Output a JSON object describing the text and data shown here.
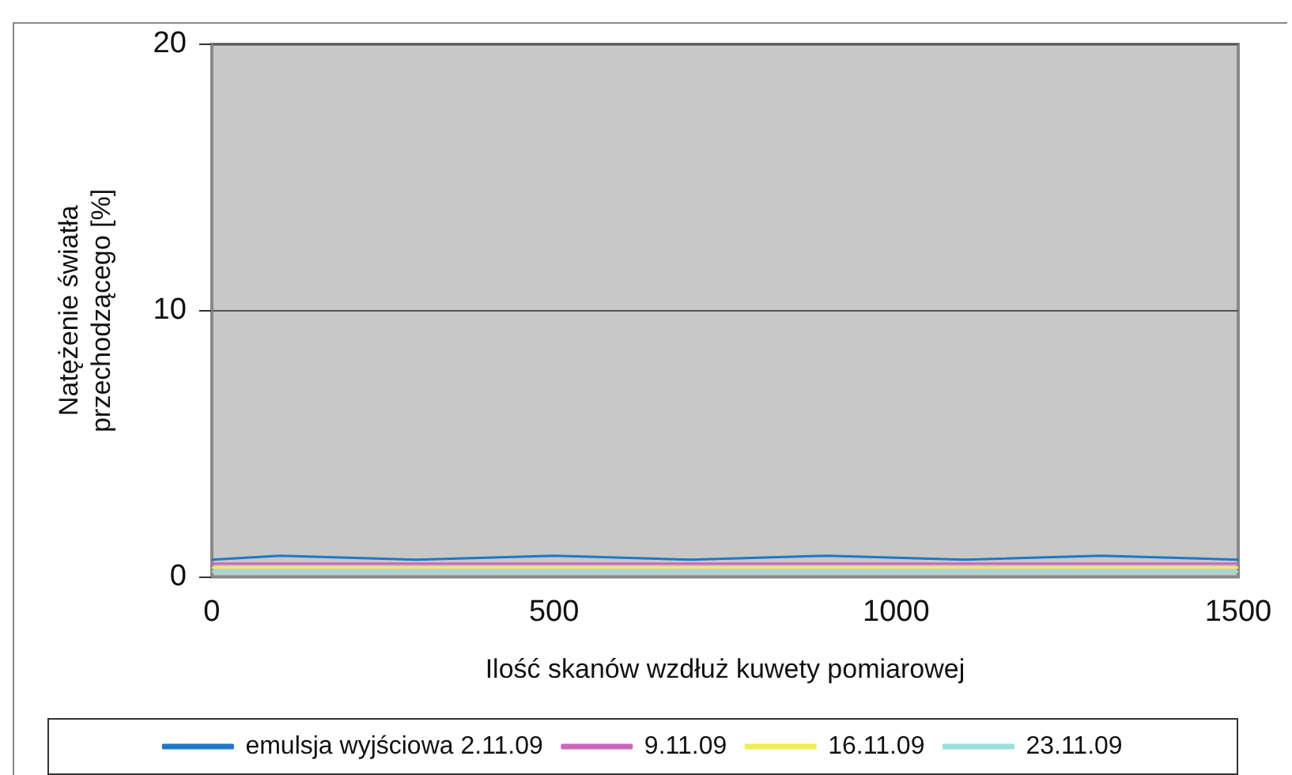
{
  "chart_data": {
    "type": "line",
    "xlabel": "Ilość skanów wzdłuż kuwety pomiarowej",
    "ylabel": "Natężenie światła przechodzącego [%]",
    "xlim": [
      0,
      1500
    ],
    "xticks": [
      0,
      500,
      1000,
      1500
    ],
    "ylim": [
      0,
      20
    ],
    "yticks": [
      0,
      10,
      20
    ],
    "grid": "y",
    "legend": "bottom",
    "marker": "none",
    "line_style": "solid",
    "series": [
      {
        "name": "emulsja wyjściowa 2.11.09",
        "color": "#1f78c8",
        "x": [
          0,
          100,
          300,
          500,
          700,
          900,
          1100,
          1300,
          1500
        ],
        "values": [
          0.65,
          0.8,
          0.65,
          0.8,
          0.65,
          0.8,
          0.65,
          0.8,
          0.65
        ]
      },
      {
        "name": "9.11.09",
        "color": "#cc66bb",
        "x": [
          0,
          500,
          1000,
          1500
        ],
        "values": [
          0.5,
          0.5,
          0.5,
          0.5
        ]
      },
      {
        "name": "16.11.09",
        "color": "#eeee55",
        "x": [
          0,
          500,
          1000,
          1500
        ],
        "values": [
          0.35,
          0.35,
          0.35,
          0.35
        ]
      },
      {
        "name": "23.11.09",
        "color": "#99dddd",
        "x": [
          0,
          500,
          1000,
          1500
        ],
        "values": [
          0.2,
          0.2,
          0.2,
          0.2
        ]
      }
    ]
  }
}
